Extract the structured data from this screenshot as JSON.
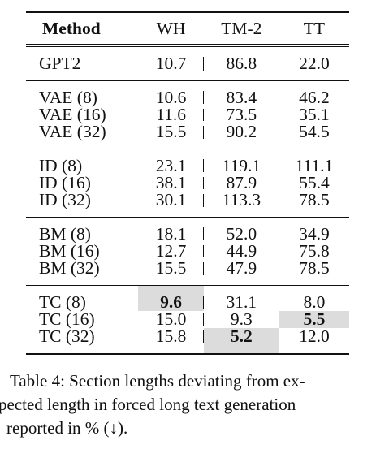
{
  "table": {
    "headers": [
      "Method",
      "WH",
      "TM-2",
      "TT"
    ],
    "groups": [
      [
        [
          "GPT2",
          "10.7",
          "86.8",
          "22.0"
        ]
      ],
      [
        [
          "VAE (8)",
          "10.6",
          "83.4",
          "46.2"
        ],
        [
          "VAE (16)",
          "11.6",
          "73.5",
          "35.1"
        ],
        [
          "VAE (32)",
          "15.5",
          "90.2",
          "54.5"
        ]
      ],
      [
        [
          "ID (8)",
          "23.1",
          "119.1",
          "111.1"
        ],
        [
          "ID (16)",
          "38.1",
          "87.9",
          "55.4"
        ],
        [
          "ID (32)",
          "30.1",
          "113.3",
          "78.5"
        ]
      ],
      [
        [
          "BM (8)",
          "18.1",
          "52.0",
          "34.9"
        ],
        [
          "BM (16)",
          "12.7",
          "44.9",
          "75.8"
        ],
        [
          "BM (32)",
          "15.5",
          "47.9",
          "78.5"
        ]
      ],
      [
        [
          "TC (8)",
          "9.6",
          "31.1",
          "8.0"
        ],
        [
          "TC (16)",
          "15.0",
          "9.3",
          "5.5"
        ],
        [
          "TC (32)",
          "15.8",
          "5.2",
          "12.0"
        ]
      ]
    ],
    "highlighted": [
      {
        "group": 4,
        "row": 0,
        "col": 1
      },
      {
        "group": 4,
        "row": 1,
        "col": 3
      },
      {
        "group": 4,
        "row": 2,
        "col": 2
      }
    ],
    "highlight_color": "#dcdcdc"
  },
  "caption": {
    "line1": "Table 4: Section lengths deviating from ex-",
    "line2": "pected length in forced long text generation",
    "line3": "reported in % (↓)."
  }
}
